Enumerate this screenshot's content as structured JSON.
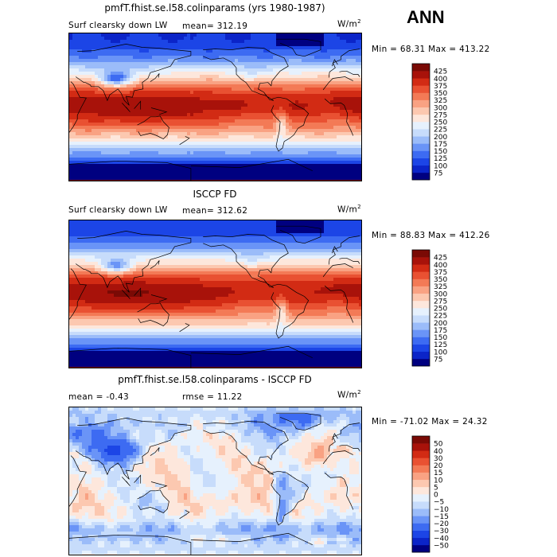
{
  "header": {
    "season": "ANN"
  },
  "panels": [
    {
      "title": "pmfT.fhist.se.l58.colinparams (yrs 1980-1987)",
      "left_label": "Surf clearsky down LW",
      "stat_label": "mean=",
      "stat_value": "312.19",
      "units": "W/m",
      "units_exp": "2",
      "minmax": "Min =  68.31 Max = 413.22",
      "palette": "lw"
    },
    {
      "title": "ISCCP FD",
      "left_label": "Surf clearsky down LW",
      "stat_label": "mean=",
      "stat_value": "312.62",
      "units": "W/m",
      "units_exp": "2",
      "minmax": "Min =  88.83 Max = 412.26",
      "palette": "lw"
    },
    {
      "title": "pmfT.fhist.se.l58.colinparams - ISCCP FD",
      "left_label": "mean =  -0.43",
      "stat_label": "rmse =",
      "stat_value": "11.22",
      "units": "W/m",
      "units_exp": "2",
      "minmax": "Min = -71.02 Max =  24.32",
      "palette": "diff"
    }
  ],
  "chart_data": [
    {
      "type": "heatmap",
      "title": "pmfT.fhist.se.l58.colinparams (yrs 1980-1987)",
      "field": "Surf clearsky down LW",
      "units": "W/m2",
      "mean": 312.19,
      "min": 68.31,
      "max": 413.22,
      "colorbar_levels": [
        75,
        100,
        125,
        150,
        175,
        200,
        225,
        250,
        275,
        300,
        325,
        350,
        375,
        400,
        425
      ],
      "colorbar_colors": [
        "#000080",
        "#0b24c8",
        "#1c45e6",
        "#3d6bf2",
        "#6a94f7",
        "#9bbcf9",
        "#c7dcfb",
        "#e6f1fd",
        "#fde7dc",
        "#fcc8b0",
        "#f9a283",
        "#f37a56",
        "#e95132",
        "#d22b14",
        "#a8120a",
        "#7a0a05"
      ],
      "pattern": "warm tropics (>375), cold poles (<125), reduced values over Tibetan plateau, Andes and Antarctica"
    },
    {
      "type": "heatmap",
      "title": "ISCCP FD",
      "field": "Surf clearsky down LW",
      "units": "W/m2",
      "mean": 312.62,
      "min": 88.83,
      "max": 412.26,
      "colorbar_levels": [
        75,
        100,
        125,
        150,
        175,
        200,
        225,
        250,
        275,
        300,
        325,
        350,
        375,
        400,
        425
      ],
      "colorbar_colors": [
        "#000080",
        "#0b24c8",
        "#1c45e6",
        "#3d6bf2",
        "#6a94f7",
        "#9bbcf9",
        "#c7dcfb",
        "#e6f1fd",
        "#fde7dc",
        "#fcc8b0",
        "#f9a283",
        "#f37a56",
        "#e95132",
        "#d22b14",
        "#a8120a",
        "#7a0a05"
      ],
      "pattern": "warm pool maximum over western Pacific / Indian Ocean, cold poles"
    },
    {
      "type": "heatmap",
      "title": "pmfT.fhist.se.l58.colinparams - ISCCP FD",
      "field": "difference",
      "units": "W/m2",
      "mean": -0.43,
      "rmse": 11.22,
      "min": -71.02,
      "max": 24.32,
      "colorbar_levels": [
        -50,
        -40,
        -30,
        -20,
        -15,
        -10,
        -5,
        0,
        5,
        10,
        15,
        20,
        30,
        40,
        50
      ],
      "colorbar_colors": [
        "#000080",
        "#0b24c8",
        "#1c45e6",
        "#3d6bf2",
        "#6a94f7",
        "#9bbcf9",
        "#c7dcfb",
        "#e6f1fd",
        "#fde7dc",
        "#fcc8b0",
        "#f9a283",
        "#f37a56",
        "#e95132",
        "#d22b14",
        "#a8120a",
        "#7a0a05"
      ],
      "pattern": "negative (blue) over high latitudes, continents and Andes; positive (red) over subtropical oceans"
    }
  ]
}
